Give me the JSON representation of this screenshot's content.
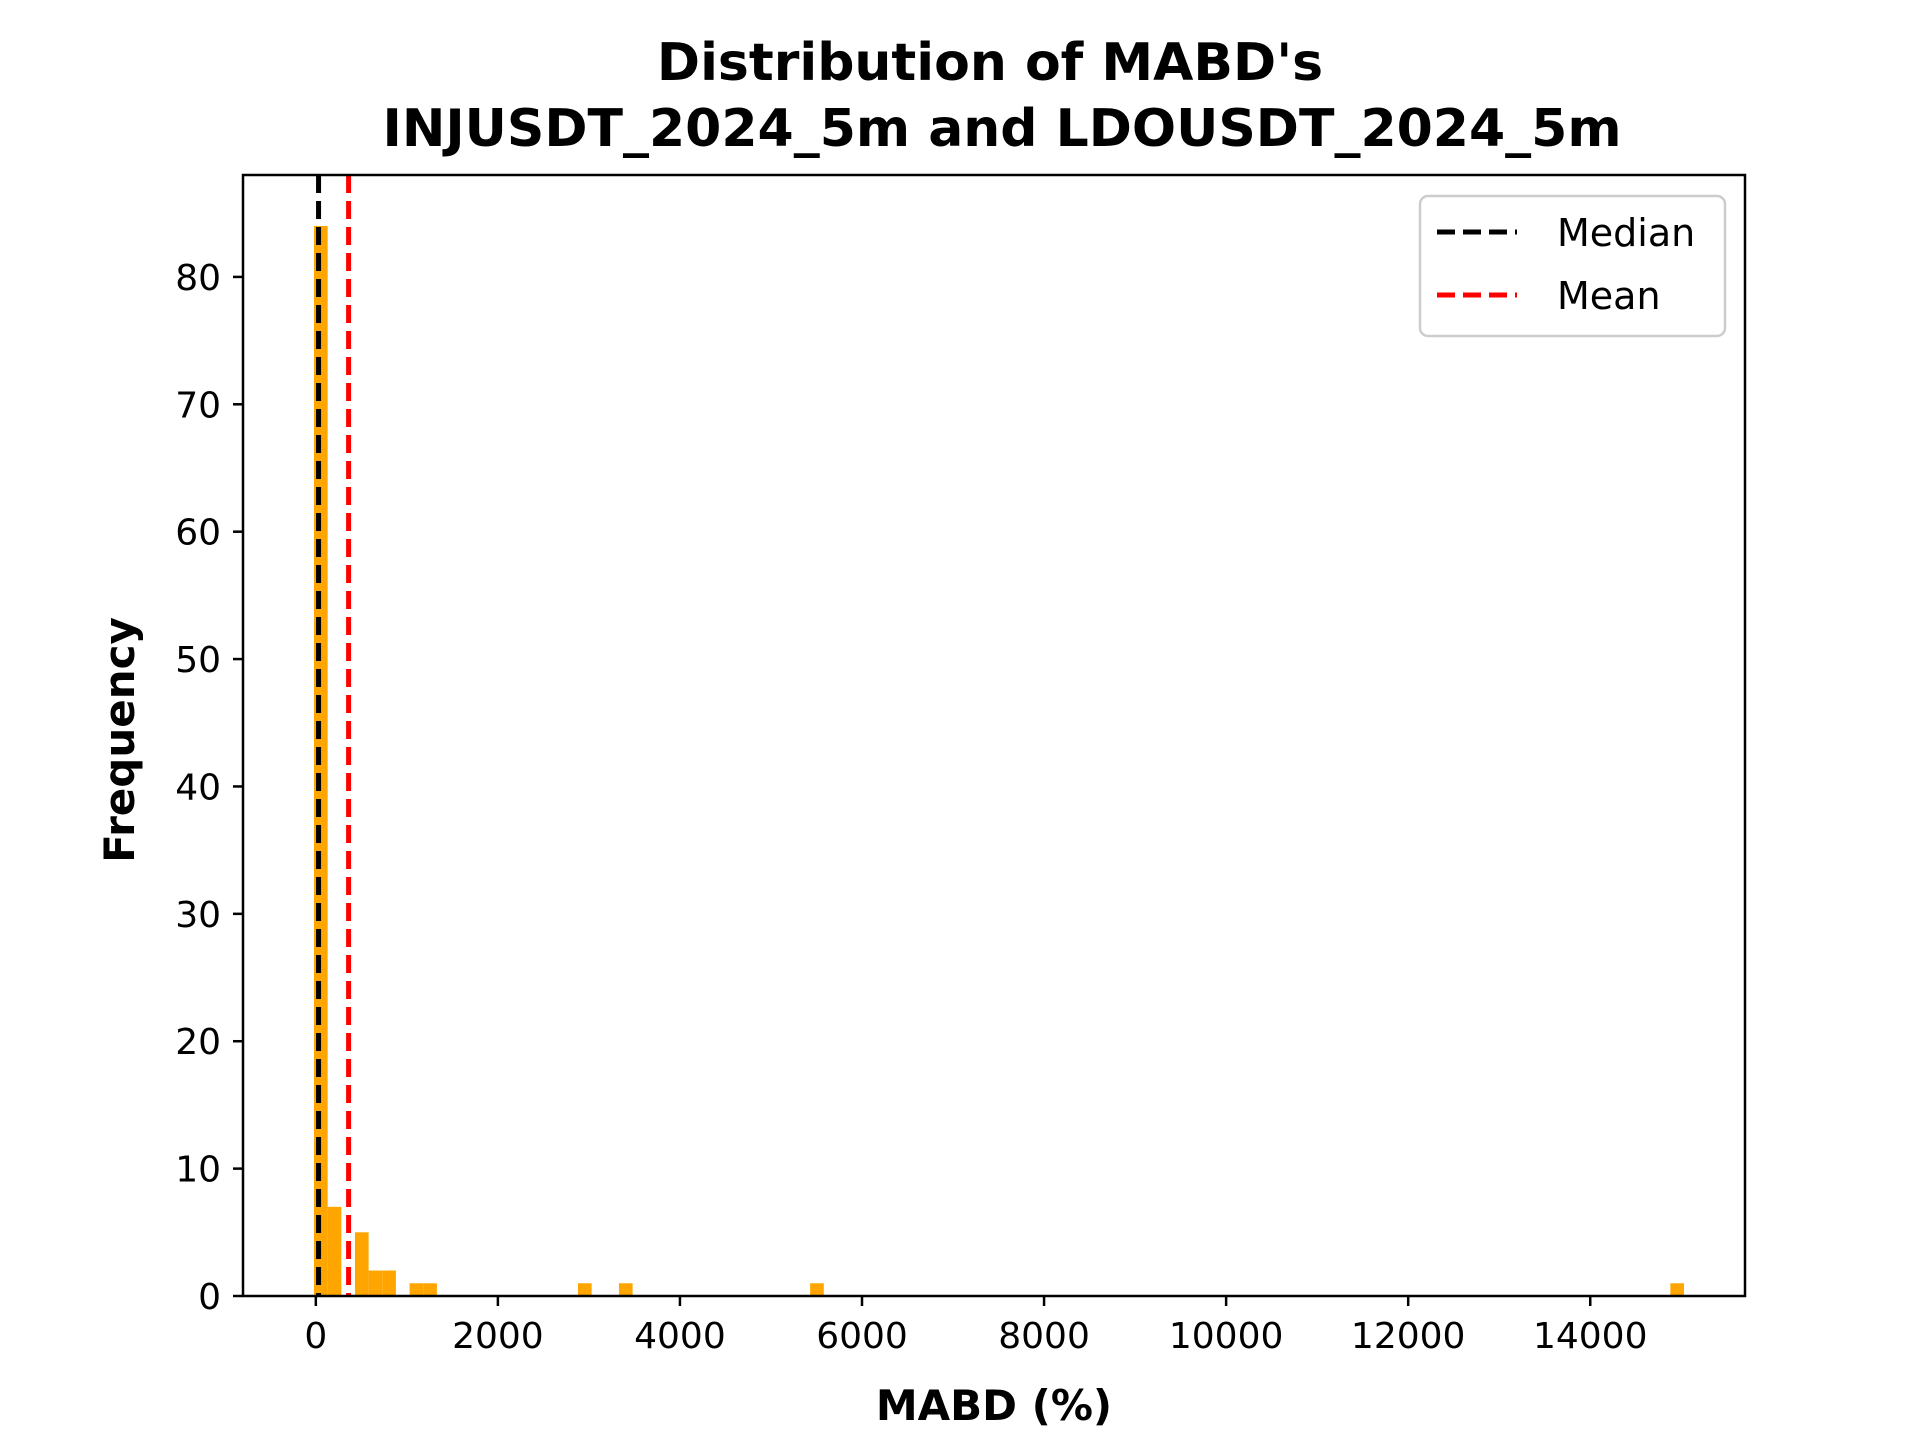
{
  "chart_data": {
    "type": "histogram",
    "title": [
      "Distribution of MABD's",
      "INJUSDT_2024_5m and LDOUSDT_2024_5m"
    ],
    "xlabel": "MABD (%)",
    "ylabel": "Frequency",
    "xlim": [
      -800,
      15700
    ],
    "ylim": [
      0,
      88
    ],
    "xticks": [
      0,
      2000,
      4000,
      6000,
      8000,
      10000,
      12000,
      14000
    ],
    "xtick_labels": [
      "0",
      "2000",
      "4000",
      "6000",
      "8000",
      "10000",
      "12000",
      "14000"
    ],
    "yticks": [
      0,
      10,
      20,
      30,
      40,
      50,
      60,
      70,
      80
    ],
    "ytick_labels": [
      "0",
      "10",
      "20",
      "30",
      "40",
      "50",
      "60",
      "70",
      "80"
    ],
    "bar_color": "#ffa500",
    "bins": [
      {
        "x0": -20,
        "x1": 130,
        "count": 84
      },
      {
        "x0": 130,
        "x1": 280,
        "count": 7
      },
      {
        "x0": 430,
        "x1": 580,
        "count": 5
      },
      {
        "x0": 580,
        "x1": 730,
        "count": 2
      },
      {
        "x0": 730,
        "x1": 880,
        "count": 2
      },
      {
        "x0": 1030,
        "x1": 1180,
        "count": 1
      },
      {
        "x0": 1180,
        "x1": 1330,
        "count": 1
      },
      {
        "x0": 2880,
        "x1": 3030,
        "count": 1
      },
      {
        "x0": 3330,
        "x1": 3480,
        "count": 1
      },
      {
        "x0": 5430,
        "x1": 5580,
        "count": 1
      },
      {
        "x0": 14880,
        "x1": 15030,
        "count": 1
      }
    ],
    "lines": [
      {
        "name": "Median",
        "x": 30,
        "color": "#000000",
        "style": "dashed"
      },
      {
        "name": "Mean",
        "x": 360,
        "color": "#ff0000",
        "style": "dashed"
      }
    ],
    "legend": {
      "placement": "top-right",
      "entries": [
        "Median",
        "Mean"
      ]
    },
    "grid": false
  }
}
